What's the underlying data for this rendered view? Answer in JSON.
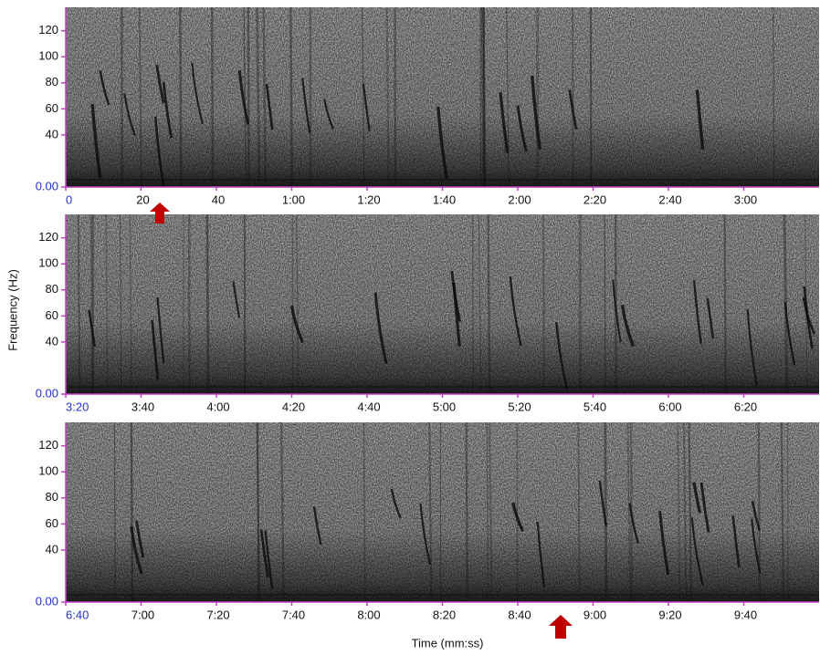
{
  "chart_data": [
    {
      "type": "spectrogram",
      "xlim": [
        0,
        200
      ],
      "xticks": [
        0,
        20,
        40,
        {
          "value": 60,
          "label": "1:00"
        },
        {
          "value": 80,
          "label": "1:20"
        },
        {
          "value": 100,
          "label": "1:40"
        },
        {
          "value": 120,
          "label": "2:00"
        },
        {
          "value": 140,
          "label": "2:20"
        },
        {
          "value": 160,
          "label": "2:40"
        },
        {
          "value": 180,
          "label": "3:00"
        }
      ],
      "ylim": [
        0,
        138
      ],
      "yticks": [
        {
          "value": 0,
          "label": "0.00"
        },
        40,
        60,
        80,
        100,
        120
      ]
    },
    {
      "type": "spectrogram",
      "ylabel": "Frequency (Hz)",
      "xlim": [
        200,
        400
      ],
      "xticks": [
        {
          "value": 200,
          "label": "3:20"
        },
        {
          "value": 220,
          "label": "3:40"
        },
        {
          "value": 240,
          "label": "4:00"
        },
        {
          "value": 260,
          "label": "4:20"
        },
        {
          "value": 280,
          "label": "4:40"
        },
        {
          "value": 300,
          "label": "5:00"
        },
        {
          "value": 320,
          "label": "5:20"
        },
        {
          "value": 340,
          "label": "5:40"
        },
        {
          "value": 360,
          "label": "6:00"
        },
        {
          "value": 380,
          "label": "6:20"
        }
      ],
      "ylim": [
        0,
        138
      ],
      "yticks": [
        {
          "value": 0,
          "label": "0.00"
        },
        40,
        60,
        80,
        100,
        120
      ]
    },
    {
      "type": "spectrogram",
      "xlabel": "Time (mm:ss)",
      "xlim": [
        400,
        600
      ],
      "xticks": [
        {
          "value": 400,
          "label": "6:40"
        },
        {
          "value": 420,
          "label": "7:00"
        },
        {
          "value": 440,
          "label": "7:20"
        },
        {
          "value": 460,
          "label": "7:40"
        },
        {
          "value": 480,
          "label": "8:00"
        },
        {
          "value": 500,
          "label": "8:20"
        },
        {
          "value": 520,
          "label": "8:40"
        },
        {
          "value": 540,
          "label": "9:00"
        },
        {
          "value": 560,
          "label": "9:20"
        },
        {
          "value": 580,
          "label": "9:40"
        }
      ],
      "ylim": [
        0,
        138
      ],
      "yticks": [
        {
          "value": 0,
          "label": "0.00"
        },
        40,
        60,
        80,
        100,
        120
      ]
    }
  ]
}
